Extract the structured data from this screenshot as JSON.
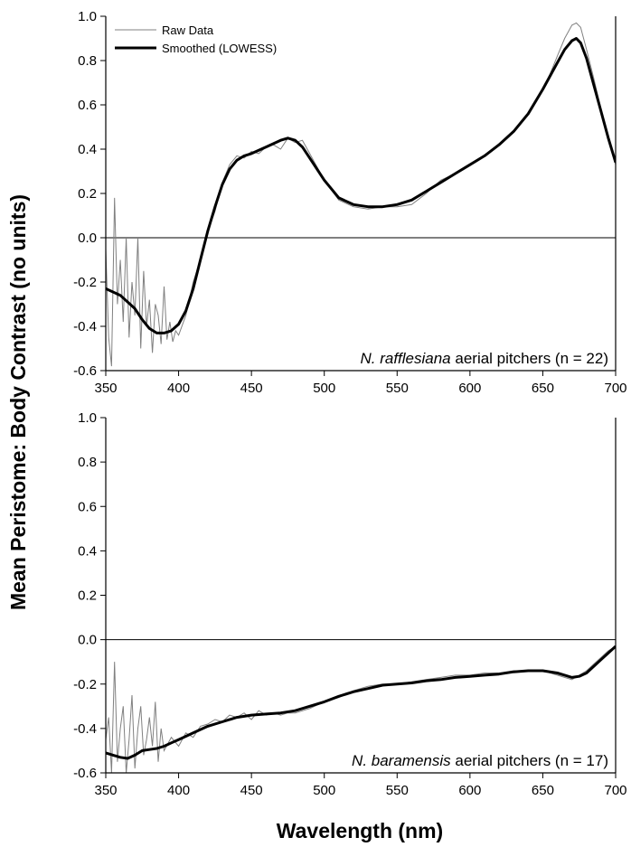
{
  "ylabel": "Mean Peristome: Body Contrast (no units)",
  "xlabel": "Wavelength (nm)",
  "colors": {
    "raw": "#808080",
    "smoothed": "#000000"
  },
  "chart_data": [
    {
      "type": "line",
      "xlim": [
        350,
        700
      ],
      "ylim": [
        -0.6,
        1.0
      ],
      "x_ticks": [
        "350",
        "400",
        "450",
        "500",
        "550",
        "600",
        "650",
        "700"
      ],
      "y_ticks": [
        "-0.6",
        "-0.4",
        "-0.2",
        "0.0",
        "0.2",
        "0.4",
        "0.6",
        "0.8",
        "1.0"
      ],
      "legend": [
        "Raw Data",
        "Smoothed (LOWESS)"
      ],
      "legend_position": "top-left",
      "annotation": {
        "species": "N. rafflesiana",
        "rest": " aerial pitchers (n = 22)"
      },
      "series": [
        {
          "name": "Raw Data",
          "x": [
            350,
            352,
            354,
            356,
            358,
            360,
            362,
            364,
            366,
            368,
            370,
            372,
            374,
            376,
            378,
            380,
            382,
            384,
            386,
            388,
            390,
            392,
            394,
            396,
            398,
            400,
            405,
            410,
            415,
            420,
            425,
            430,
            435,
            440,
            445,
            450,
            455,
            460,
            465,
            470,
            475,
            480,
            485,
            490,
            495,
            500,
            510,
            520,
            530,
            540,
            550,
            560,
            570,
            580,
            590,
            600,
            610,
            620,
            630,
            640,
            650,
            655,
            660,
            665,
            670,
            673,
            676,
            680,
            685,
            690,
            695,
            700
          ],
          "y": [
            -0.05,
            -0.45,
            -0.58,
            0.18,
            -0.3,
            -0.1,
            -0.38,
            0.0,
            -0.45,
            -0.2,
            -0.35,
            0.0,
            -0.5,
            -0.15,
            -0.4,
            -0.28,
            -0.52,
            -0.3,
            -0.35,
            -0.48,
            -0.22,
            -0.46,
            -0.38,
            -0.47,
            -0.42,
            -0.44,
            -0.35,
            -0.2,
            -0.1,
            0.03,
            0.12,
            0.25,
            0.33,
            0.37,
            0.36,
            0.39,
            0.38,
            0.41,
            0.42,
            0.4,
            0.45,
            0.43,
            0.44,
            0.38,
            0.32,
            0.26,
            0.17,
            0.14,
            0.13,
            0.14,
            0.14,
            0.15,
            0.2,
            0.26,
            0.29,
            0.33,
            0.37,
            0.42,
            0.48,
            0.56,
            0.67,
            0.74,
            0.82,
            0.9,
            0.96,
            0.97,
            0.95,
            0.85,
            0.72,
            0.58,
            0.45,
            0.33
          ]
        },
        {
          "name": "Smoothed (LOWESS)",
          "x": [
            350,
            360,
            370,
            375,
            380,
            385,
            390,
            395,
            400,
            405,
            410,
            415,
            420,
            425,
            430,
            435,
            440,
            445,
            450,
            460,
            470,
            475,
            480,
            485,
            490,
            500,
            510,
            520,
            530,
            540,
            550,
            560,
            570,
            580,
            590,
            600,
            610,
            620,
            630,
            640,
            650,
            660,
            665,
            670,
            673,
            676,
            680,
            685,
            690,
            695,
            700
          ],
          "y": [
            -0.23,
            -0.26,
            -0.32,
            -0.37,
            -0.41,
            -0.43,
            -0.43,
            -0.42,
            -0.39,
            -0.33,
            -0.23,
            -0.1,
            0.03,
            0.14,
            0.24,
            0.31,
            0.35,
            0.37,
            0.38,
            0.41,
            0.44,
            0.45,
            0.44,
            0.41,
            0.36,
            0.26,
            0.18,
            0.15,
            0.14,
            0.14,
            0.15,
            0.17,
            0.21,
            0.25,
            0.29,
            0.33,
            0.37,
            0.42,
            0.48,
            0.56,
            0.67,
            0.79,
            0.85,
            0.89,
            0.9,
            0.88,
            0.81,
            0.69,
            0.57,
            0.45,
            0.34
          ]
        }
      ]
    },
    {
      "type": "line",
      "xlim": [
        350,
        700
      ],
      "ylim": [
        -0.6,
        1.0
      ],
      "x_ticks": [
        "350",
        "400",
        "450",
        "500",
        "550",
        "600",
        "650",
        "700"
      ],
      "y_ticks": [
        "-0.6",
        "-0.4",
        "-0.2",
        "0.0",
        "0.2",
        "0.4",
        "0.6",
        "0.8",
        "1.0"
      ],
      "annotation": {
        "species": "N. baramensis",
        "rest": " aerial pitchers (n = 17)"
      },
      "series": [
        {
          "name": "Raw Data",
          "x": [
            350,
            352,
            354,
            356,
            358,
            360,
            362,
            364,
            366,
            368,
            370,
            372,
            374,
            376,
            378,
            380,
            382,
            384,
            386,
            388,
            390,
            395,
            400,
            405,
            410,
            415,
            420,
            425,
            430,
            435,
            440,
            445,
            450,
            455,
            460,
            465,
            470,
            475,
            480,
            490,
            500,
            510,
            520,
            530,
            540,
            550,
            560,
            570,
            580,
            590,
            600,
            610,
            620,
            630,
            640,
            650,
            660,
            665,
            670,
            675,
            680,
            685,
            690,
            695,
            700
          ],
          "y": [
            -0.45,
            -0.35,
            -0.6,
            -0.1,
            -0.55,
            -0.4,
            -0.3,
            -0.6,
            -0.45,
            -0.25,
            -0.58,
            -0.4,
            -0.3,
            -0.52,
            -0.45,
            -0.35,
            -0.48,
            -0.28,
            -0.55,
            -0.4,
            -0.5,
            -0.44,
            -0.48,
            -0.42,
            -0.44,
            -0.39,
            -0.38,
            -0.36,
            -0.37,
            -0.34,
            -0.35,
            -0.33,
            -0.36,
            -0.32,
            -0.34,
            -0.33,
            -0.34,
            -0.33,
            -0.33,
            -0.31,
            -0.28,
            -0.26,
            -0.23,
            -0.21,
            -0.2,
            -0.2,
            -0.19,
            -0.18,
            -0.17,
            -0.16,
            -0.16,
            -0.15,
            -0.15,
            -0.14,
            -0.14,
            -0.14,
            -0.16,
            -0.17,
            -0.18,
            -0.16,
            -0.14,
            -0.11,
            -0.08,
            -0.05,
            -0.03
          ]
        },
        {
          "name": "Smoothed (LOWESS)",
          "x": [
            350,
            355,
            360,
            365,
            370,
            375,
            380,
            385,
            390,
            395,
            400,
            410,
            420,
            430,
            440,
            450,
            460,
            470,
            480,
            490,
            500,
            510,
            520,
            530,
            540,
            550,
            560,
            570,
            580,
            590,
            600,
            610,
            620,
            630,
            640,
            650,
            660,
            665,
            670,
            675,
            680,
            685,
            690,
            695,
            700
          ],
          "y": [
            -0.51,
            -0.52,
            -0.53,
            -0.535,
            -0.52,
            -0.5,
            -0.495,
            -0.49,
            -0.48,
            -0.465,
            -0.45,
            -0.42,
            -0.39,
            -0.37,
            -0.35,
            -0.34,
            -0.335,
            -0.33,
            -0.32,
            -0.3,
            -0.28,
            -0.255,
            -0.235,
            -0.22,
            -0.205,
            -0.2,
            -0.195,
            -0.185,
            -0.18,
            -0.17,
            -0.165,
            -0.16,
            -0.155,
            -0.145,
            -0.14,
            -0.14,
            -0.15,
            -0.16,
            -0.17,
            -0.165,
            -0.15,
            -0.12,
            -0.09,
            -0.06,
            -0.03
          ]
        }
      ]
    }
  ]
}
